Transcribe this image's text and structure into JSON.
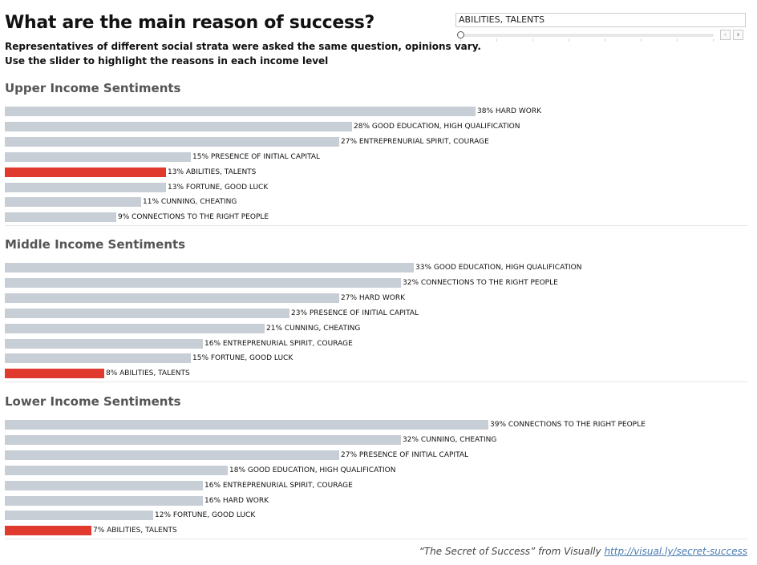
{
  "header": {
    "title": "What are the main reason of success?",
    "subtitle_line1": "Representatives of different social strata were asked the same question, opinions vary.",
    "subtitle_line2": "Use the slider to highlight the reasons in each income level"
  },
  "filter": {
    "selected_value": "ABILITIES, TALENTS",
    "prev_icon": "chevron-left-icon",
    "next_icon": "chevron-right-icon"
  },
  "footer": {
    "text": "“The Secret of Success” from Visually ",
    "link_text": "http://visual.ly/secret-success"
  },
  "colors": {
    "bar": "#c8ced6",
    "highlight": "#e03a2f"
  },
  "chart_data": [
    {
      "type": "bar",
      "title": "Upper Income Sentiments",
      "highlight": "ABILITIES, TALENTS",
      "categories": [
        "HARD WORK",
        "GOOD EDUCATION, HIGH QUALIFICATION",
        "ENTREPRENURIAL SPIRIT, COURAGE",
        "PRESENCE OF INITIAL CAPITAL",
        "ABILITIES, TALENTS",
        "FORTUNE, GOOD LUCK",
        "CUNNING, CHEATING",
        "CONNECTIONS TO THE RIGHT PEOPLE"
      ],
      "values": [
        38,
        28,
        27,
        15,
        13,
        13,
        11,
        9
      ],
      "unit": "%"
    },
    {
      "type": "bar",
      "title": "Middle Income Sentiments",
      "highlight": "ABILITIES, TALENTS",
      "categories": [
        "GOOD EDUCATION, HIGH QUALIFICATION",
        "CONNECTIONS TO THE RIGHT PEOPLE",
        "HARD WORK",
        "PRESENCE OF INITIAL CAPITAL",
        "CUNNING, CHEATING",
        "ENTREPRENURIAL SPIRIT, COURAGE",
        "FORTUNE, GOOD LUCK",
        "ABILITIES, TALENTS"
      ],
      "values": [
        33,
        32,
        27,
        23,
        21,
        16,
        15,
        8
      ],
      "unit": "%"
    },
    {
      "type": "bar",
      "title": "Lower Income Sentiments",
      "highlight": "ABILITIES, TALENTS",
      "categories": [
        "CONNECTIONS TO THE RIGHT PEOPLE",
        "CUNNING, CHEATING",
        "PRESENCE OF INITIAL CAPITAL",
        "GOOD EDUCATION, HIGH QUALIFICATION",
        "ENTREPRENURIAL SPIRIT, COURAGE",
        "HARD WORK",
        "FORTUNE, GOOD LUCK",
        "ABILITIES, TALENTS"
      ],
      "values": [
        39,
        32,
        27,
        18,
        16,
        16,
        12,
        7
      ],
      "unit": "%"
    }
  ]
}
